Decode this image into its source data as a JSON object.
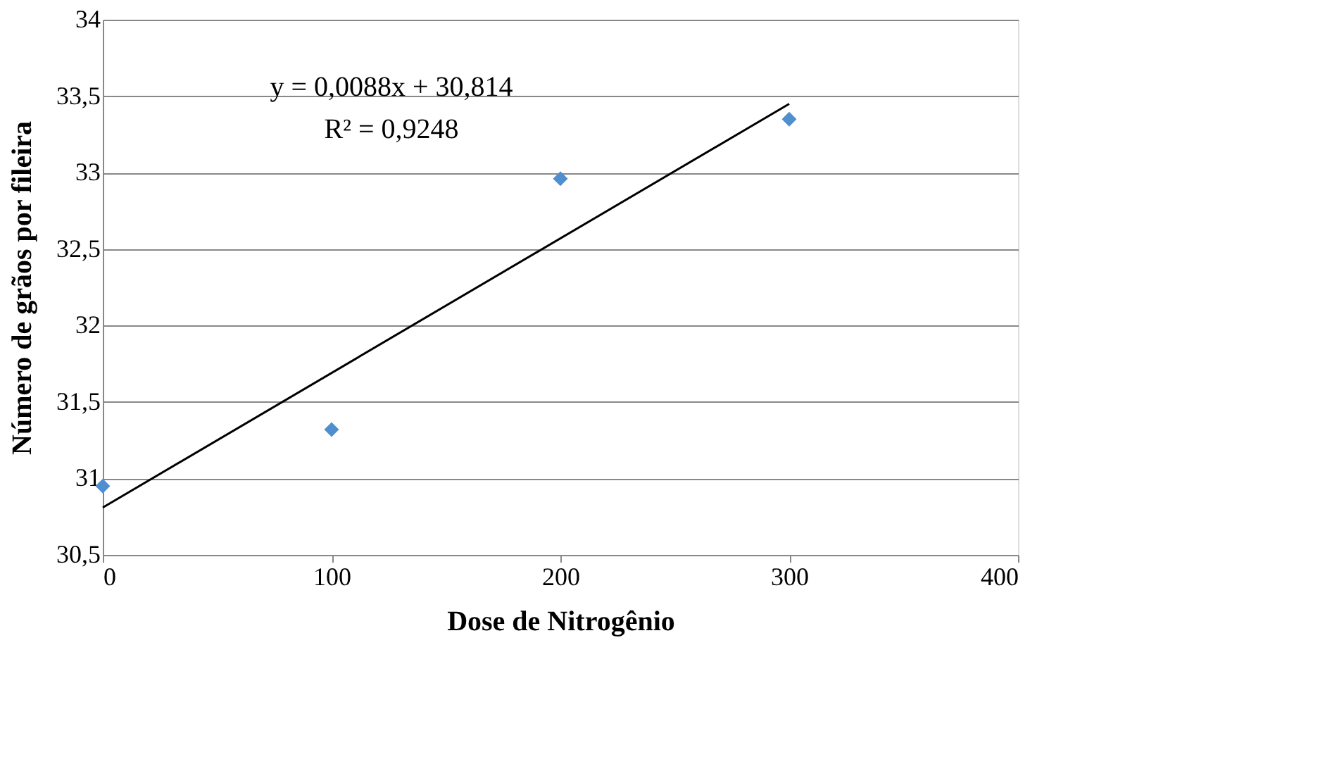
{
  "chart_data": {
    "type": "scatter",
    "xlabel": "Dose de Nitrogênio",
    "ylabel": "Número de grãos por fileira",
    "x": [
      0,
      100,
      200,
      300
    ],
    "series": [
      {
        "color": "#4f8fd0",
        "marker": "diamond",
        "values": [
          30.95,
          31.32,
          32.96,
          33.35
        ]
      },
      {
        "type": "line",
        "color": "#000000",
        "marker": "none",
        "line_style": "solid",
        "x": [
          0,
          300
        ],
        "values": [
          30.81,
          33.45
        ]
      }
    ],
    "xlim": [
      0,
      400
    ],
    "xticks": [
      0,
      100,
      200,
      300,
      400
    ],
    "ylim": [
      30.5,
      34
    ],
    "yticks": [
      {
        "value": 30.5,
        "label": "30,5"
      },
      31,
      {
        "value": 31.5,
        "label": "31,5"
      },
      32,
      {
        "value": 32.5,
        "label": "32,5"
      },
      33,
      {
        "value": 33.5,
        "label": "33,5"
      },
      34
    ],
    "grid": "y",
    "annotations": [
      "y = 0,0088x + 30,814",
      "R² = 0,9248"
    ]
  }
}
